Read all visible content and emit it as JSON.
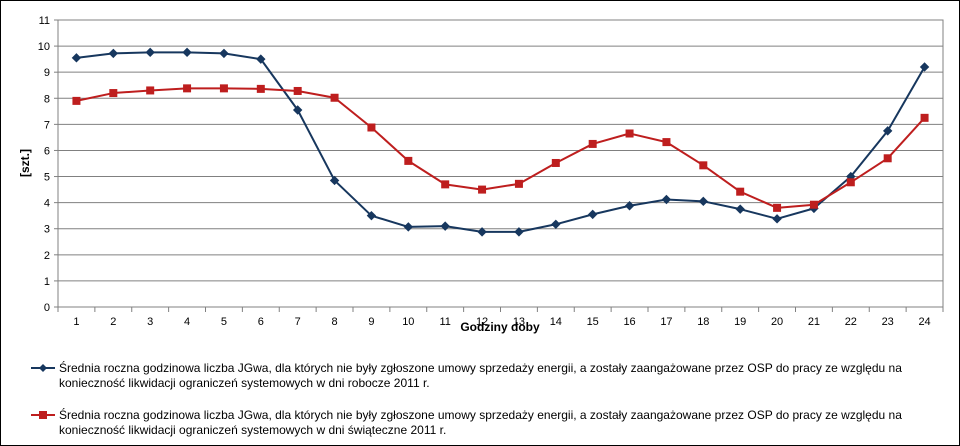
{
  "chart_data": {
    "type": "line",
    "title": "",
    "xlabel": "Godziny doby",
    "ylabel": "[szt.]",
    "ylim": [
      0,
      11
    ],
    "yticks": [
      0,
      1,
      2,
      3,
      4,
      5,
      6,
      7,
      8,
      9,
      10,
      11
    ],
    "grid": true,
    "legend_position": "bottom",
    "categories": [
      "1",
      "2",
      "3",
      "4",
      "5",
      "6",
      "7",
      "8",
      "9",
      "10",
      "11",
      "12",
      "13",
      "14",
      "15",
      "16",
      "17",
      "18",
      "19",
      "20",
      "21",
      "22",
      "23",
      "24"
    ],
    "series": [
      {
        "name": "Średnia roczna godzinowa liczba JGwa, dla których nie były zgłoszone umowy sprzedaży energii, a zostały zaangażowane przez OSP do pracy ze względu na konieczność likwidacji ograniczeń systemowych w dni robocze 2011 r.",
        "color": "#17375E",
        "marker": "diamond",
        "values": [
          9.55,
          9.72,
          9.76,
          9.76,
          9.72,
          9.5,
          7.55,
          4.85,
          3.5,
          3.07,
          3.1,
          2.88,
          2.88,
          3.17,
          3.55,
          3.88,
          4.12,
          4.05,
          3.75,
          3.38,
          3.78,
          5.0,
          6.75,
          9.2
        ]
      },
      {
        "name": "Średnia roczna godzinowa liczba JGwa, dla których nie były zgłoszone umowy sprzedaży energii, a zostały zaangażowane przez OSP do pracy ze względu na konieczność likwidacji ograniczeń systemowych w dni świąteczne 2011 r.",
        "color": "#BE1E1E",
        "marker": "square",
        "values": [
          7.9,
          8.2,
          8.3,
          8.38,
          8.38,
          8.36,
          8.28,
          8.02,
          6.88,
          5.6,
          4.7,
          4.5,
          4.72,
          5.52,
          6.25,
          6.65,
          6.32,
          5.43,
          4.42,
          3.8,
          3.92,
          4.78,
          5.7,
          7.25
        ]
      }
    ]
  }
}
